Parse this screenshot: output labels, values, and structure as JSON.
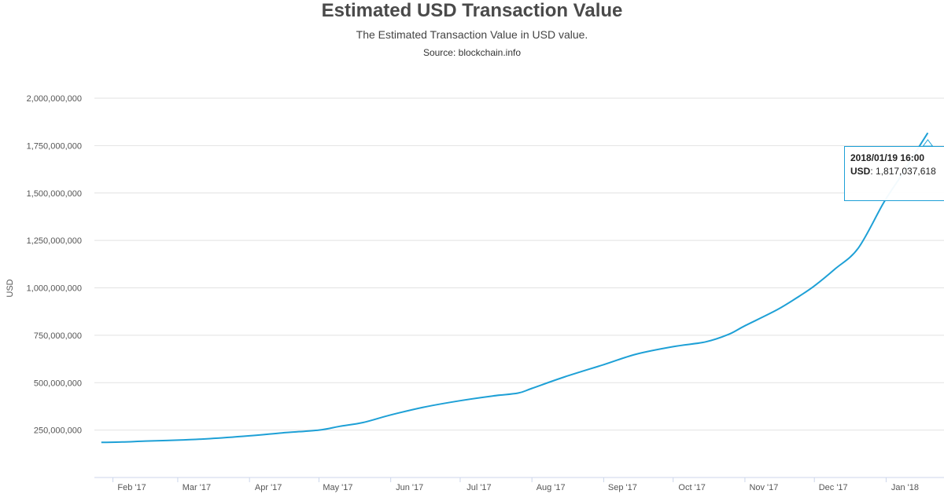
{
  "header": {
    "title": "Estimated USD Transaction Value",
    "subtitle": "The Estimated Transaction Value in USD value.",
    "source": "Source: blockchain.info"
  },
  "tooltip": {
    "date": "2018/01/19 16:00",
    "key": "USD",
    "value": "1,817,037,618"
  },
  "chart_data": {
    "type": "line",
    "title": "Estimated USD Transaction Value",
    "xlabel": "",
    "ylabel": "USD",
    "ylim": [
      0,
      2000000000
    ],
    "yticks": [
      250000000,
      500000000,
      750000000,
      1000000000,
      1250000000,
      1500000000,
      1750000000,
      2000000000
    ],
    "ytick_labels": [
      "250,000,000",
      "500,000,000",
      "750,000,000",
      "1,000,000,000",
      "1,250,000,000",
      "1,500,000,000",
      "1,750,000,000",
      "2,000,000,000"
    ],
    "xlim": [
      "2017-01-24",
      "2018-01-26"
    ],
    "xticks": [
      "2017-02-01",
      "2017-03-01",
      "2017-04-01",
      "2017-05-01",
      "2017-06-01",
      "2017-07-01",
      "2017-08-01",
      "2017-09-01",
      "2017-10-01",
      "2017-11-01",
      "2017-12-01",
      "2018-01-01"
    ],
    "xtick_labels": [
      "Feb '17",
      "Mar '17",
      "Apr '17",
      "May '17",
      "Jun '17",
      "Jul '17",
      "Aug '17",
      "Sep '17",
      "Oct '17",
      "Nov '17",
      "Dec '17",
      "Jan '18"
    ],
    "grid": true,
    "line_color": "#1ea0d6",
    "series": [
      {
        "name": "USD",
        "x": [
          "2017-01-27",
          "2017-02-05",
          "2017-02-15",
          "2017-03-01",
          "2017-03-15",
          "2017-04-01",
          "2017-04-15",
          "2017-05-01",
          "2017-05-10",
          "2017-05-20",
          "2017-06-01",
          "2017-06-15",
          "2017-07-01",
          "2017-07-15",
          "2017-07-26",
          "2017-08-01",
          "2017-08-15",
          "2017-09-01",
          "2017-09-15",
          "2017-10-01",
          "2017-10-15",
          "2017-10-25",
          "2017-11-01",
          "2017-11-15",
          "2017-11-25",
          "2017-12-01",
          "2017-12-10",
          "2017-12-20",
          "2017-12-31",
          "2018-01-08",
          "2018-01-14",
          "2018-01-19"
        ],
        "values": [
          185000000,
          187000000,
          192000000,
          197000000,
          205000000,
          220000000,
          235000000,
          250000000,
          270000000,
          290000000,
          330000000,
          370000000,
          405000000,
          430000000,
          445000000,
          470000000,
          530000000,
          595000000,
          650000000,
          690000000,
          715000000,
          755000000,
          800000000,
          885000000,
          960000000,
          1010000000,
          1100000000,
          1210000000,
          1450000000,
          1600000000,
          1720000000,
          1817037618
        ]
      }
    ]
  }
}
